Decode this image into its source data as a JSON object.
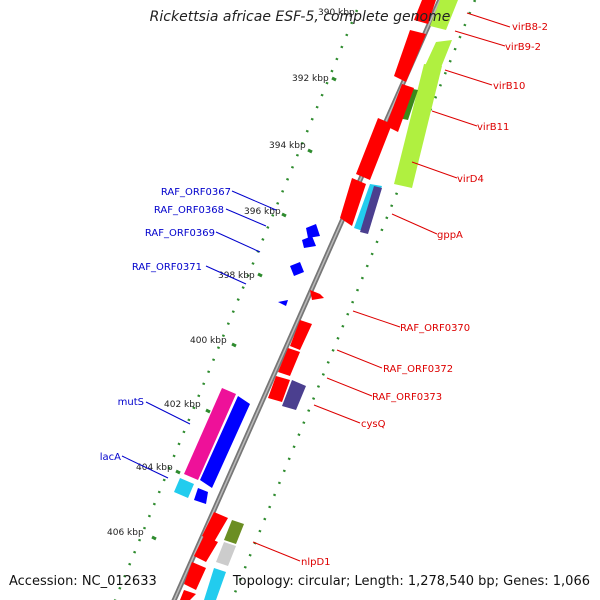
{
  "title": "Rickettsia africae ESF-5, complete genome",
  "accession": "Accession: NC_012633",
  "topology": "Topology: circular; Length: 1,278,540 bp; Genes: 1,066",
  "colors": {
    "cds_red": "#ff0000",
    "cds_blue": "#0000ff",
    "rna_green": "#b0f040",
    "dark_green": "#3a8a1a",
    "olive": "#6b8e23",
    "cyan": "#22ccee",
    "purple": "#4b3f8f",
    "magenta": "#ee1199",
    "grey": "#cccccc",
    "backbone": "#888888",
    "tick_green": "#2e8b2e",
    "label_red": "#dd0000",
    "label_blue": "#0000cc"
  },
  "ticks": [
    {
      "label": "390 kbp"
    },
    {
      "label": "392 kbp"
    },
    {
      "label": "394 kbp"
    },
    {
      "label": "396 kbp"
    },
    {
      "label": "398 kbp"
    },
    {
      "label": "400 kbp"
    },
    {
      "label": "402 kbp"
    },
    {
      "label": "404 kbp"
    },
    {
      "label": "406 kbp"
    }
  ],
  "genes_right": [
    "virB8-2",
    "virB9-2",
    "virB10",
    "virB11",
    "virD4",
    "gppA",
    "RAF_ORF0370",
    "RAF_ORF0372",
    "RAF_ORF0373",
    "cysQ",
    "nlpD1"
  ],
  "genes_left": [
    "RAF_ORF0367",
    "RAF_ORF0368",
    "RAF_ORF0369",
    "RAF_ORF0371",
    "mutS",
    "lacA"
  ]
}
